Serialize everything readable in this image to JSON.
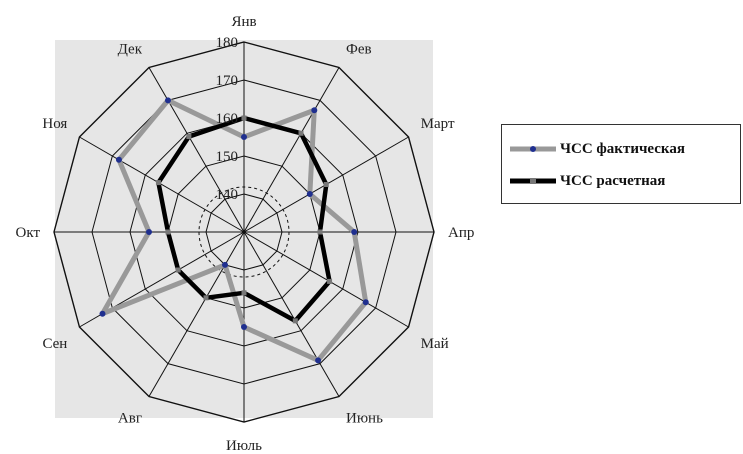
{
  "chart_data": {
    "type": "radar",
    "title": "",
    "categories": [
      "Янв",
      "Фев",
      "Март",
      "Апр",
      "Май",
      "Июнь",
      "Июль",
      "Авг",
      "Сен",
      "Окт",
      "Ноя",
      "Дек"
    ],
    "r_range": [
      130,
      180
    ],
    "r_ticks": [
      140,
      150,
      160,
      170,
      180
    ],
    "tick_labels": [
      "140",
      "150",
      "160",
      "170",
      "180"
    ],
    "grid": true,
    "legend_position": "right",
    "series": [
      {
        "name": "ЧСС фактическая",
        "color": "#999999",
        "marker_color": "#1f2f8f",
        "values": [
          155,
          167,
          150,
          159,
          167,
          169,
          155,
          140,
          173,
          155,
          168,
          170
        ]
      },
      {
        "name": "ЧСС расчетная",
        "color": "#000000",
        "marker_color": "#777777",
        "values": [
          160,
          160,
          155,
          150,
          156,
          157,
          146,
          150,
          150,
          150,
          156,
          159
        ]
      }
    ]
  }
}
